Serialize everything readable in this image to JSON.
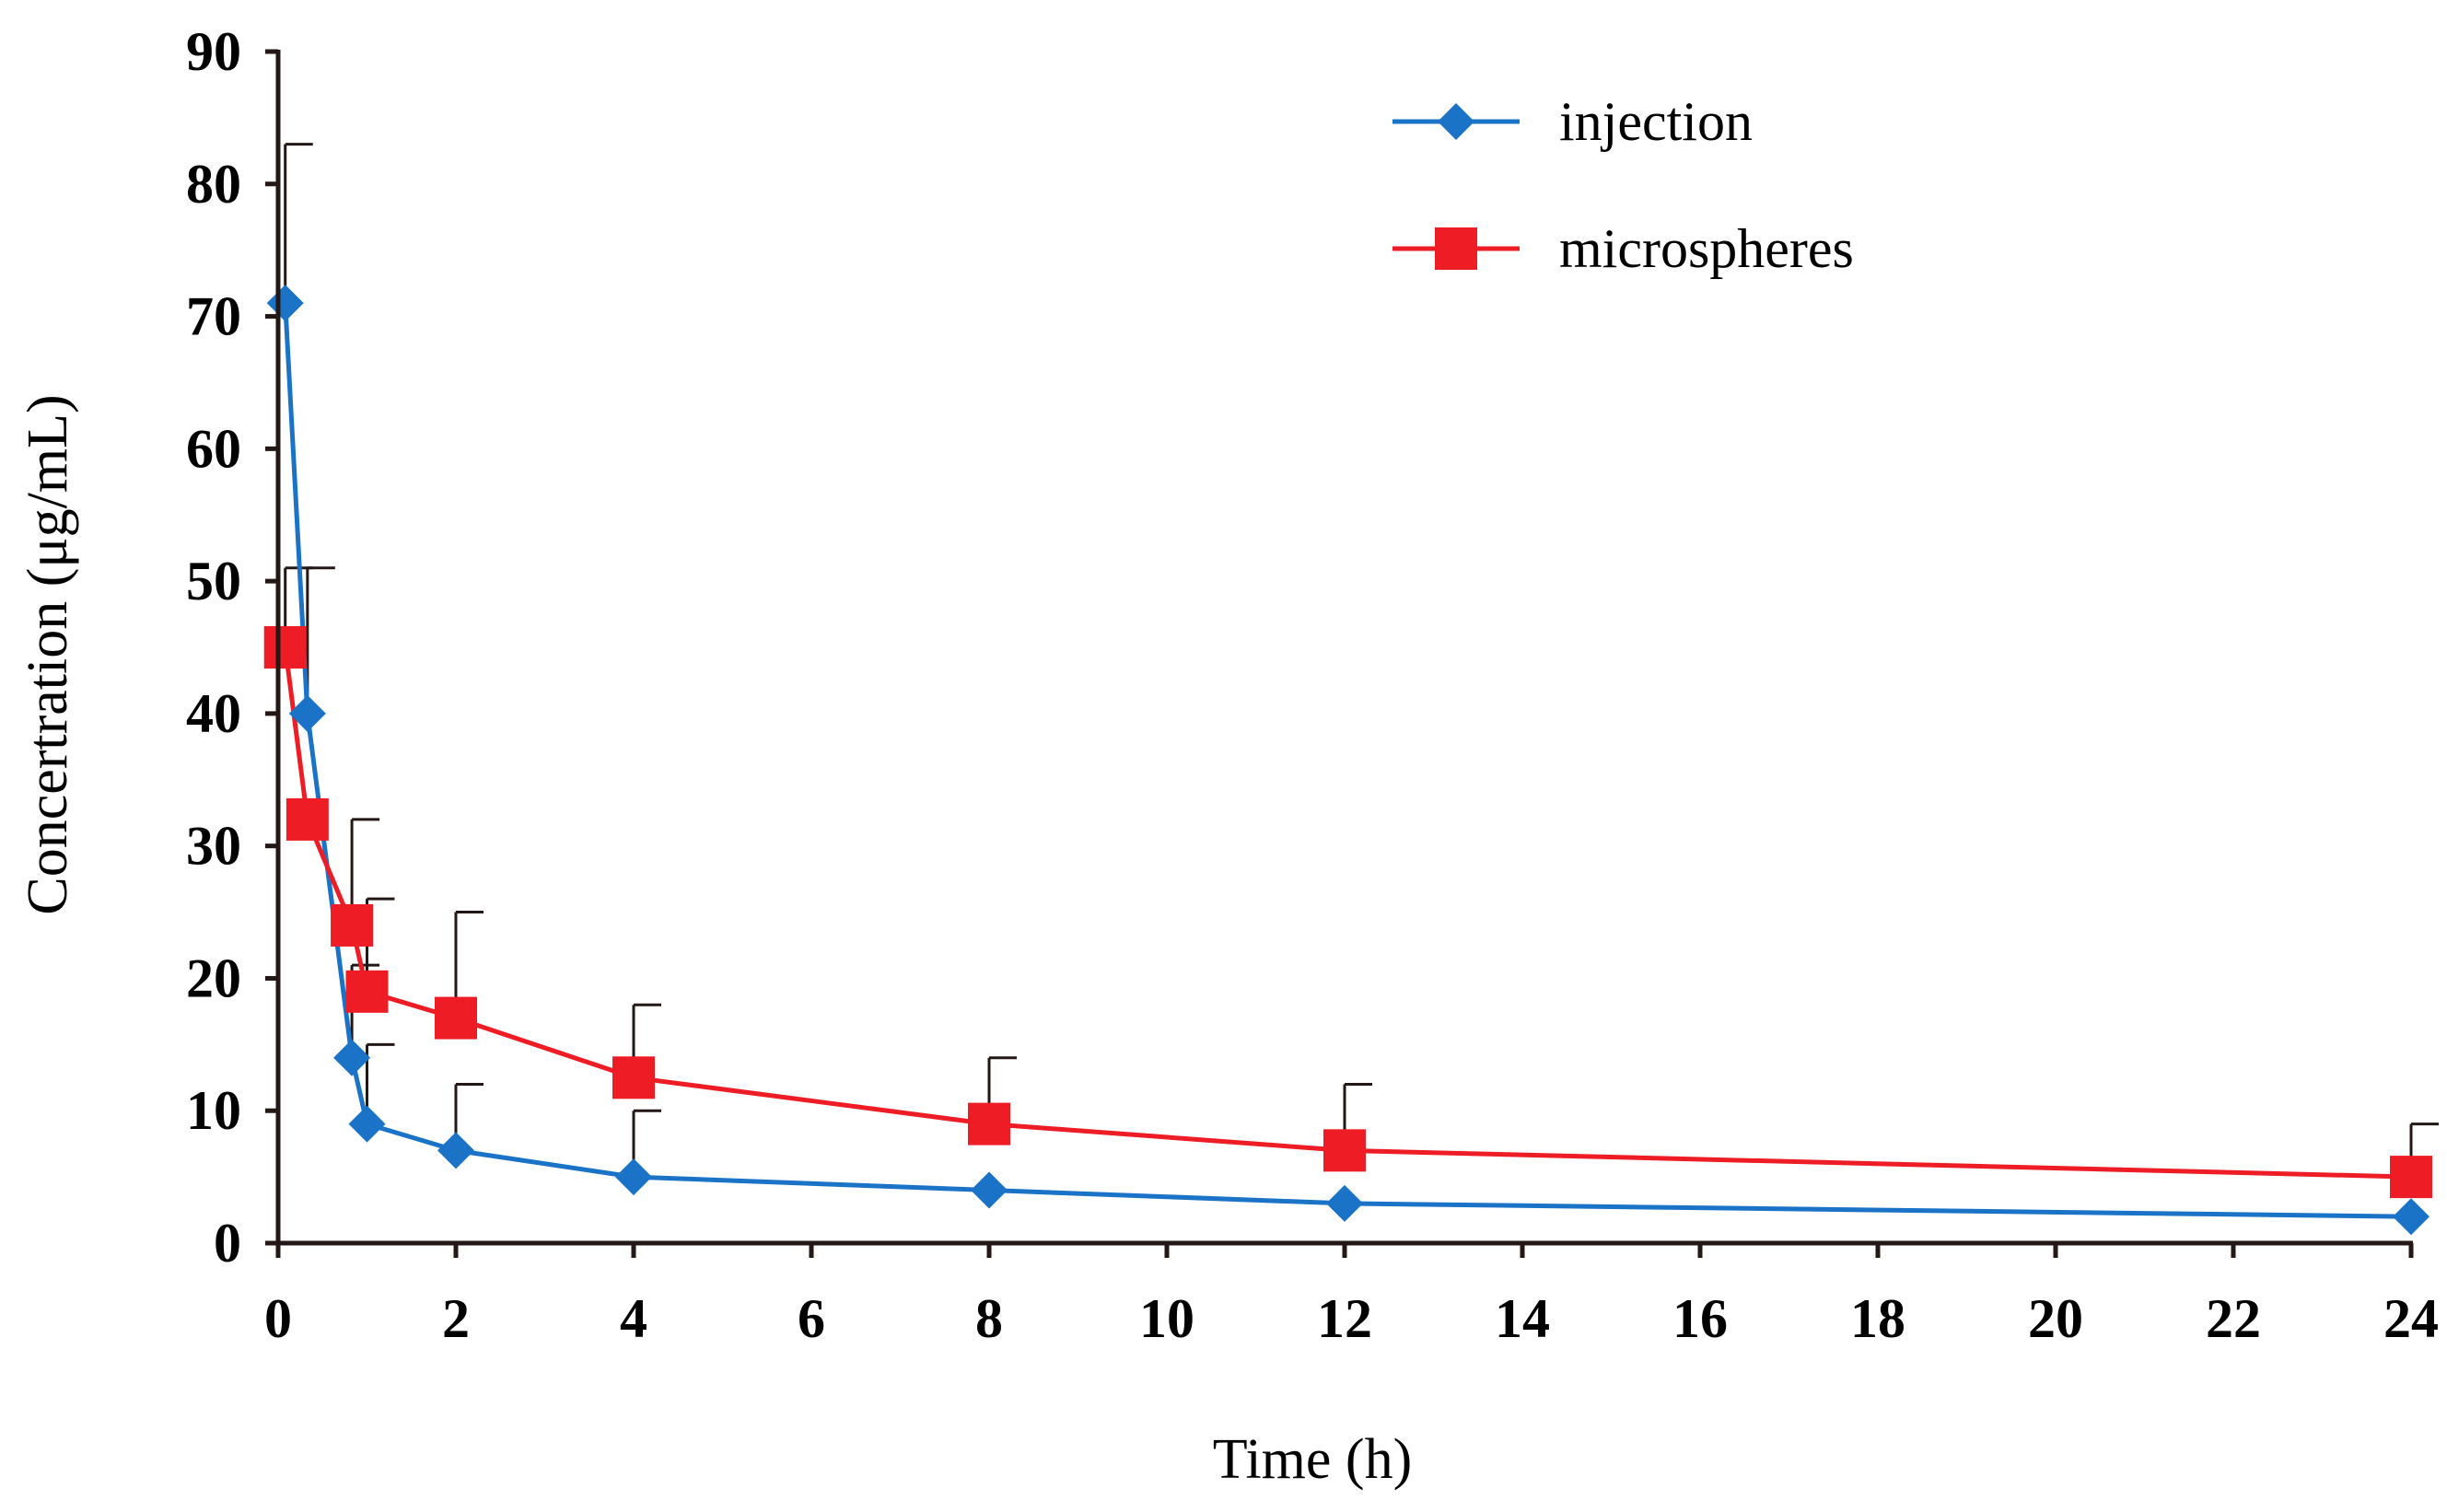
{
  "chart_data": {
    "type": "line",
    "title": "",
    "xlabel": "Time (h)",
    "ylabel": "Concertration (μg/mL)",
    "xlim": [
      0,
      24
    ],
    "ylim": [
      0,
      90
    ],
    "x_ticks": [
      "0",
      "2",
      "4",
      "6",
      "8",
      "10",
      "12",
      "14",
      "16",
      "18",
      "20",
      "22",
      "24"
    ],
    "y_ticks": [
      "0",
      "10",
      "20",
      "30",
      "40",
      "50",
      "60",
      "70",
      "80",
      "90"
    ],
    "grid": false,
    "legend_position": "top-right",
    "series": [
      {
        "name": "injection",
        "color": "#1a73c6",
        "marker": "diamond",
        "points": [
          {
            "x": 0.08,
            "y": 71,
            "err": 12
          },
          {
            "x": 0.33,
            "y": 40,
            "err": 11
          },
          {
            "x": 0.83,
            "y": 14,
            "err": 7
          },
          {
            "x": 1.0,
            "y": 9,
            "err": 6
          },
          {
            "x": 2.0,
            "y": 7,
            "err": 5
          },
          {
            "x": 4.0,
            "y": 5,
            "err": 5
          },
          {
            "x": 8.0,
            "y": 4,
            "err": 0
          },
          {
            "x": 12.0,
            "y": 3,
            "err": 0
          },
          {
            "x": 24.0,
            "y": 2,
            "err": 0
          }
        ]
      },
      {
        "name": "microspheres",
        "color": "#ee1c24",
        "marker": "square",
        "points": [
          {
            "x": 0.08,
            "y": 45,
            "err": 6
          },
          {
            "x": 0.33,
            "y": 32,
            "err": 0
          },
          {
            "x": 0.83,
            "y": 24,
            "err": 8
          },
          {
            "x": 1.0,
            "y": 19,
            "err": 7
          },
          {
            "x": 2.0,
            "y": 17,
            "err": 8
          },
          {
            "x": 4.0,
            "y": 12.5,
            "err": 5.5
          },
          {
            "x": 8.0,
            "y": 9,
            "err": 5
          },
          {
            "x": 12.0,
            "y": 7,
            "err": 5
          },
          {
            "x": 24.0,
            "y": 5,
            "err": 4
          }
        ]
      }
    ]
  }
}
